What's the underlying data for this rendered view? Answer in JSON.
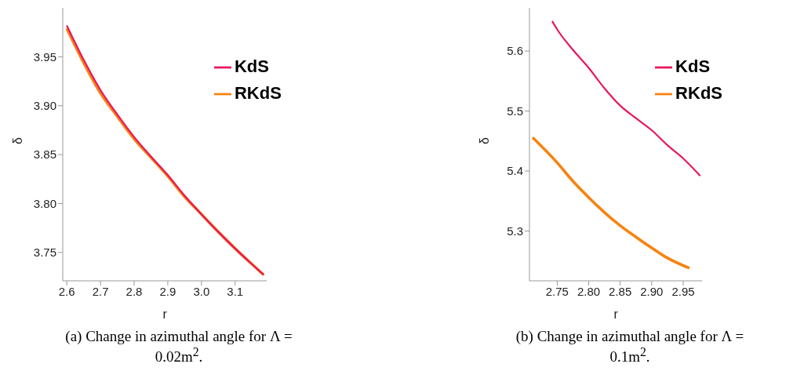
{
  "chart_data": [
    {
      "type": "line",
      "xlabel": "r",
      "ylabel": "δ",
      "xlim": [
        2.588,
        3.194
      ],
      "ylim": [
        3.721,
        4.0
      ],
      "xticks": [
        2.6,
        2.7,
        2.8,
        2.9,
        {
          "value": 3,
          "label": "3.0"
        },
        3.1
      ],
      "yticks": [
        3.75,
        {
          "value": 3.8,
          "label": "3.80"
        },
        3.85,
        {
          "value": 3.9,
          "label": "3.90"
        },
        3.95
      ],
      "grid": false,
      "legend": "top right",
      "marker": "none",
      "line_style": "solid",
      "series": [
        {
          "name": "KdS",
          "color": "#e8175d",
          "x": [
            2.6,
            2.65,
            2.7,
            2.75,
            2.8,
            2.85,
            2.9,
            2.95,
            3.0,
            3.05,
            3.1,
            3.15,
            3.185
          ],
          "values": [
            3.982,
            3.947,
            3.916,
            3.891,
            3.868,
            3.848,
            3.829,
            3.808,
            3.789,
            3.771,
            3.754,
            3.738,
            3.727
          ]
        },
        {
          "name": "RKdS",
          "color": "#f7830f",
          "x": [
            2.6,
            2.65,
            2.7,
            2.75,
            2.8,
            2.85,
            2.9,
            2.95,
            3.0,
            3.05,
            3.1,
            3.15,
            3.185
          ],
          "values": [
            3.979,
            3.944,
            3.913,
            3.889,
            3.866,
            3.847,
            3.828,
            3.807,
            3.789,
            3.771,
            3.754,
            3.738,
            3.727
          ]
        }
      ],
      "annotations": [
        "(a) Change in azimuthal angle for Λ = 0.02m$^{2}$."
      ]
    },
    {
      "type": "line",
      "xlabel": "r",
      "ylabel": "δ",
      "xlim": [
        2.706,
        2.98
      ],
      "ylim": [
        5.217,
        5.672
      ],
      "xticks": [
        2.75,
        {
          "value": 2.8,
          "label": "2.80"
        },
        2.85,
        {
          "value": 2.9,
          "label": "2.90"
        },
        2.95
      ],
      "yticks": [
        5.3,
        5.4,
        5.5,
        5.6
      ],
      "grid": false,
      "legend": "top right",
      "marker": "none",
      "line_style": "solid",
      "series": [
        {
          "name": "KdS",
          "color": "#e8175d",
          "x": [
            2.742,
            2.75,
            2.775,
            2.8,
            2.825,
            2.85,
            2.875,
            2.9,
            2.925,
            2.95,
            2.977
          ],
          "values": [
            5.65,
            5.636,
            5.602,
            5.572,
            5.538,
            5.509,
            5.488,
            5.468,
            5.443,
            5.421,
            5.392
          ]
        },
        {
          "name": "RKdS",
          "color": "#f7830f",
          "x": [
            2.711,
            2.75,
            2.775,
            2.8,
            2.825,
            2.85,
            2.875,
            2.9,
            2.925,
            2.96
          ],
          "values": [
            5.456,
            5.414,
            5.383,
            5.356,
            5.331,
            5.309,
            5.29,
            5.272,
            5.255,
            5.238
          ]
        }
      ],
      "annotations": [
        "(b) Change in azimuthal angle for Λ = 0.1m$^{2}$."
      ]
    }
  ]
}
